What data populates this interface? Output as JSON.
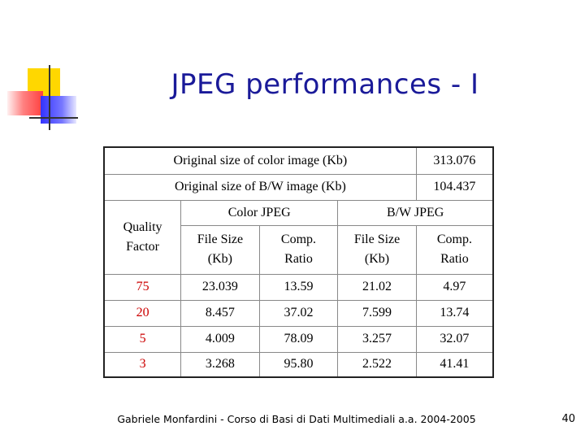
{
  "slide": {
    "title": "JPEG performances - I",
    "footer": "Gabriele Monfardini - Corso di Basi di Dati Multimediali  a.a. 2004-2005",
    "page_number": "40",
    "accent_colors": {
      "title": "#1a1a99",
      "quality_values": "#cc0000"
    }
  },
  "table": {
    "original_sizes": [
      {
        "label": "Original size of color image (Kb)",
        "value": "313.076"
      },
      {
        "label": "Original size of B/W image (Kb)",
        "value": "104.437"
      }
    ],
    "group_headers": {
      "color": "Color JPEG",
      "bw": "B/W JPEG"
    },
    "column_headers": {
      "quality": [
        "Quality",
        "Factor"
      ],
      "color_file_size": [
        "File Size",
        "(Kb)"
      ],
      "color_ratio": [
        "Comp.",
        "Ratio"
      ],
      "bw_file_size": [
        "File Size",
        "(Kb)"
      ],
      "bw_ratio": [
        "Comp.",
        "Ratio"
      ]
    },
    "rows": [
      {
        "quality": "75",
        "color_size": "23.039",
        "color_ratio": "13.59",
        "bw_size": "21.02",
        "bw_ratio": "4.97"
      },
      {
        "quality": "20",
        "color_size": "8.457",
        "color_ratio": "37.02",
        "bw_size": "7.599",
        "bw_ratio": "13.74"
      },
      {
        "quality": "5",
        "color_size": "4.009",
        "color_ratio": "78.09",
        "bw_size": "3.257",
        "bw_ratio": "32.07"
      },
      {
        "quality": "3",
        "color_size": "3.268",
        "color_ratio": "95.80",
        "bw_size": "2.522",
        "bw_ratio": "41.41"
      }
    ]
  }
}
